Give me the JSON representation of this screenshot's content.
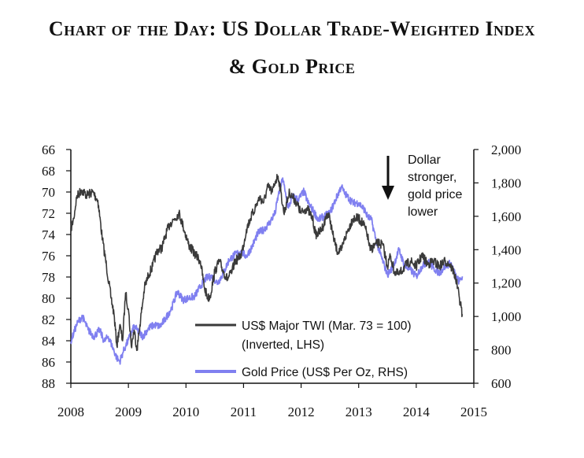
{
  "chart_data": {
    "type": "line",
    "title": "Chart of the Day: US Dollar Trade-Weighted Index",
    "title_line2": "& Gold Price",
    "x_ticks": [
      "2008",
      "2009",
      "2010",
      "2011",
      "2012",
      "2013",
      "2014",
      "2015"
    ],
    "x_range": [
      2008,
      2015
    ],
    "y_left": {
      "ticks": [
        "66",
        "68",
        "70",
        "72",
        "74",
        "76",
        "78",
        "80",
        "82",
        "84",
        "86",
        "88"
      ],
      "range": [
        66,
        88
      ],
      "inverted": true,
      "label": "LHS"
    },
    "y_right": {
      "ticks": [
        "2,000",
        "1,800",
        "1,600",
        "1,400",
        "1,200",
        "1,000",
        "800",
        "600"
      ],
      "range": [
        600,
        2000
      ],
      "label": "RHS"
    },
    "annotation": [
      "Dollar",
      "stronger,",
      "gold price",
      "lower"
    ],
    "series": [
      {
        "name": "US$ Major TWI (Mar. 73 = 100)",
        "name_line2": "(Inverted, LHS)",
        "axis": "left",
        "color": "#3a3a3a",
        "x": [
          2008.0,
          2008.05,
          2008.1,
          2008.18,
          2008.28,
          2008.38,
          2008.47,
          2008.55,
          2008.62,
          2008.7,
          2008.75,
          2008.8,
          2008.85,
          2008.9,
          2008.95,
          2009.0,
          2009.05,
          2009.1,
          2009.15,
          2009.2,
          2009.28,
          2009.35,
          2009.42,
          2009.5,
          2009.58,
          2009.65,
          2009.72,
          2009.8,
          2009.88,
          2009.95,
          2010.05,
          2010.15,
          2010.25,
          2010.32,
          2010.38,
          2010.42,
          2010.5,
          2010.58,
          2010.65,
          2010.72,
          2010.8,
          2010.85,
          2010.9,
          2010.95,
          2011.0,
          2011.05,
          2011.12,
          2011.2,
          2011.28,
          2011.35,
          2011.42,
          2011.5,
          2011.55,
          2011.6,
          2011.65,
          2011.7,
          2011.75,
          2011.8,
          2011.85,
          2011.9,
          2012.0,
          2012.1,
          2012.2,
          2012.25,
          2012.32,
          2012.4,
          2012.45,
          2012.5,
          2012.55,
          2012.62,
          2012.7,
          2012.75,
          2012.82,
          2012.9,
          2013.0,
          2013.08,
          2013.15,
          2013.2,
          2013.28,
          2013.35,
          2013.42,
          2013.5,
          2013.55,
          2013.62,
          2013.7,
          2013.8,
          2013.9,
          2014.0,
          2014.1,
          2014.2,
          2014.3,
          2014.4,
          2014.5,
          2014.58,
          2014.65,
          2014.7,
          2014.75,
          2014.8
        ],
        "values": [
          73.5,
          72.5,
          70.5,
          69.8,
          70.3,
          70.0,
          70.8,
          74.5,
          77.0,
          80.0,
          81.5,
          84.5,
          82.5,
          84.0,
          79.5,
          81.0,
          84.5,
          83.0,
          84.8,
          82.5,
          79.0,
          77.8,
          77.0,
          75.5,
          75.3,
          74.0,
          73.0,
          72.5,
          72.0,
          73.2,
          75.0,
          75.8,
          76.5,
          79.0,
          80.0,
          79.8,
          77.5,
          76.5,
          77.5,
          78.2,
          77.5,
          76.5,
          76.3,
          76.0,
          75.0,
          73.5,
          72.5,
          71.5,
          70.5,
          71.0,
          69.5,
          70.0,
          69.0,
          68.5,
          70.0,
          72.0,
          71.0,
          70.0,
          70.5,
          70.8,
          72.0,
          71.5,
          72.5,
          74.0,
          73.8,
          73.0,
          72.0,
          72.5,
          74.0,
          75.5,
          75.5,
          74.5,
          73.5,
          72.5,
          72.5,
          73.0,
          74.0,
          75.5,
          75.0,
          74.8,
          75.0,
          77.0,
          76.0,
          77.5,
          77.8,
          77.0,
          76.5,
          77.0,
          76.0,
          76.8,
          76.5,
          77.0,
          76.5,
          76.8,
          77.5,
          78.5,
          80.0,
          81.5
        ]
      },
      {
        "name": "Gold Price (US$ Per Oz, RHS)",
        "axis": "right",
        "color": "#8080f0",
        "x": [
          2008.0,
          2008.05,
          2008.1,
          2008.15,
          2008.2,
          2008.3,
          2008.4,
          2008.5,
          2008.58,
          2008.65,
          2008.72,
          2008.8,
          2008.85,
          2008.9,
          2008.95,
          2009.0,
          2009.1,
          2009.15,
          2009.25,
          2009.35,
          2009.45,
          2009.55,
          2009.65,
          2009.75,
          2009.85,
          2009.95,
          2010.05,
          2010.15,
          2010.25,
          2010.35,
          2010.45,
          2010.55,
          2010.65,
          2010.75,
          2010.85,
          2010.95,
          2011.05,
          2011.15,
          2011.25,
          2011.35,
          2011.45,
          2011.55,
          2011.6,
          2011.65,
          2011.68,
          2011.72,
          2011.78,
          2011.85,
          2011.95,
          2012.05,
          2012.12,
          2012.2,
          2012.3,
          2012.4,
          2012.5,
          2012.6,
          2012.7,
          2012.75,
          2012.8,
          2012.9,
          2013.0,
          2013.1,
          2013.15,
          2013.22,
          2013.3,
          2013.35,
          2013.45,
          2013.5,
          2013.6,
          2013.7,
          2013.8,
          2013.9,
          2014.0,
          2014.1,
          2014.2,
          2014.3,
          2014.4,
          2014.5,
          2014.6,
          2014.7,
          2014.75,
          2014.8
        ],
        "values": [
          850,
          900,
          950,
          980,
          1000,
          920,
          880,
          920,
          850,
          880,
          820,
          750,
          730,
          780,
          820,
          860,
          940,
          920,
          880,
          930,
          950,
          940,
          990,
          1050,
          1150,
          1100,
          1110,
          1120,
          1180,
          1230,
          1240,
          1200,
          1260,
          1340,
          1370,
          1390,
          1360,
          1420,
          1500,
          1520,
          1560,
          1620,
          1720,
          1780,
          1830,
          1750,
          1650,
          1720,
          1700,
          1750,
          1680,
          1640,
          1580,
          1600,
          1620,
          1700,
          1780,
          1740,
          1720,
          1680,
          1680,
          1640,
          1600,
          1580,
          1460,
          1400,
          1300,
          1250,
          1300,
          1400,
          1300,
          1280,
          1240,
          1300,
          1330,
          1290,
          1260,
          1300,
          1320,
          1230,
          1210,
          1240
        ]
      }
    ]
  }
}
